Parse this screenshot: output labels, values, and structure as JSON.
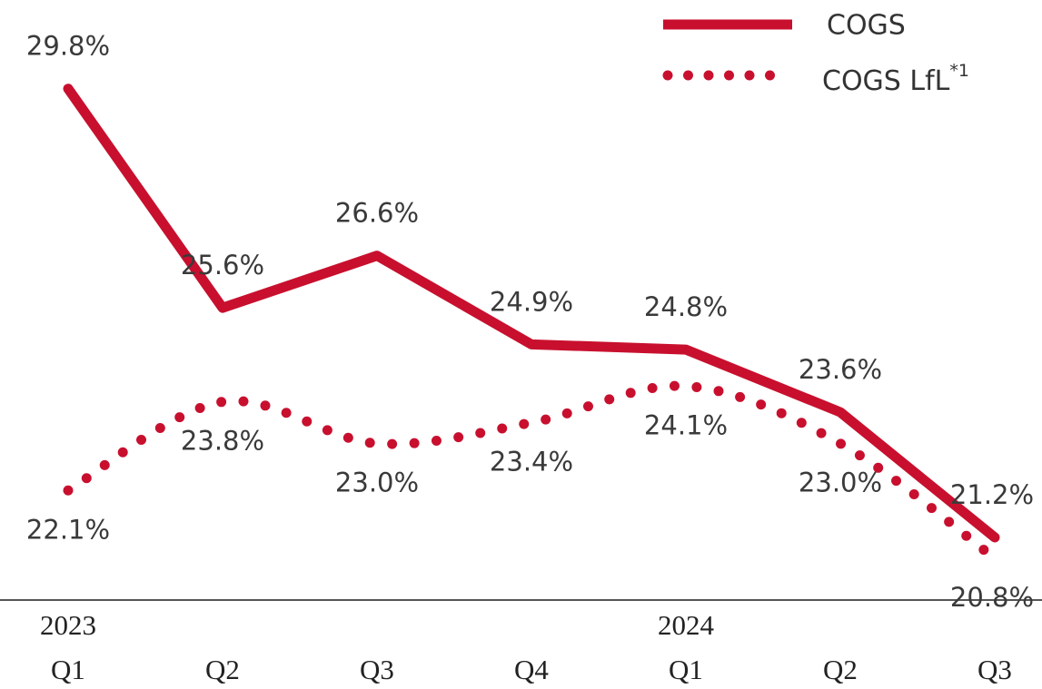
{
  "chart_data": {
    "type": "line",
    "categories": [
      "Q1",
      "Q2",
      "Q3",
      "Q4",
      "Q1",
      "Q2",
      "Q3"
    ],
    "year_labels": [
      "2023",
      null,
      null,
      null,
      "2024",
      null,
      null
    ],
    "series": [
      {
        "name": "COGS",
        "color": "#c8102e",
        "style": "solid",
        "values": [
          29.8,
          25.6,
          26.6,
          24.9,
          24.8,
          23.6,
          21.2
        ],
        "value_labels": [
          "29.8%",
          "25.6%",
          "26.6%",
          "24.9%",
          "24.8%",
          "23.6%",
          "21.2%"
        ]
      },
      {
        "name": "COGS LfL",
        "footnote_mark": "*1",
        "color": "#c8102e",
        "style": "dotted",
        "values": [
          22.1,
          23.8,
          23.0,
          23.4,
          24.1,
          23.0,
          20.8
        ],
        "value_labels": [
          "22.1%",
          "23.8%",
          "23.0%",
          "23.4%",
          "24.1%",
          "23.0%",
          "20.8%"
        ]
      }
    ],
    "ylim": [
      20,
      31.5
    ]
  }
}
